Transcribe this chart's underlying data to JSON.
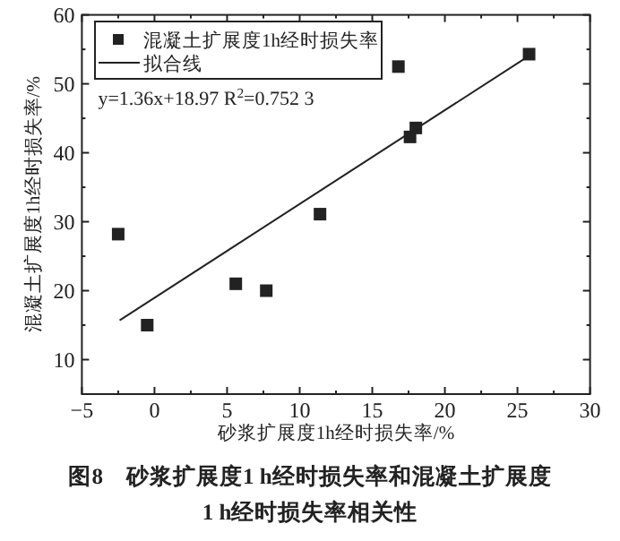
{
  "chart_data": {
    "type": "scatter",
    "title": "图8　砂浆扩展度1 h经时损失率和混凝土扩展度1 h经时损失率相关性",
    "xlabel": "砂浆扩展度1h经时损失率/%",
    "ylabel": "混凝土扩展度1h经时损失率/%",
    "xlim": [
      -5,
      30
    ],
    "ylim": [
      5,
      60
    ],
    "xticks": [
      -5,
      0,
      5,
      10,
      15,
      20,
      25,
      30
    ],
    "yticks": [
      10,
      20,
      30,
      40,
      50,
      60
    ],
    "series": [
      {
        "name": "混凝土扩展度1h经时损失率",
        "color": "#222222",
        "marker": "square",
        "x": [
          -2.5,
          -0.5,
          5.6,
          7.7,
          11.4,
          16.8,
          17.6,
          18.0,
          25.8
        ],
        "values": [
          28.2,
          15.0,
          21.0,
          20.0,
          31.1,
          52.5,
          42.3,
          43.6,
          54.3
        ]
      },
      {
        "name": "拟合线",
        "type": "line",
        "color": "#222222",
        "x": [
          -2.4,
          25.6
        ],
        "values": [
          15.7,
          53.8
        ]
      }
    ],
    "annotations": [
      "y=1.36x+18.97 R$^{2}$=0.752 3"
    ],
    "legend": "top left",
    "grid": false
  }
}
